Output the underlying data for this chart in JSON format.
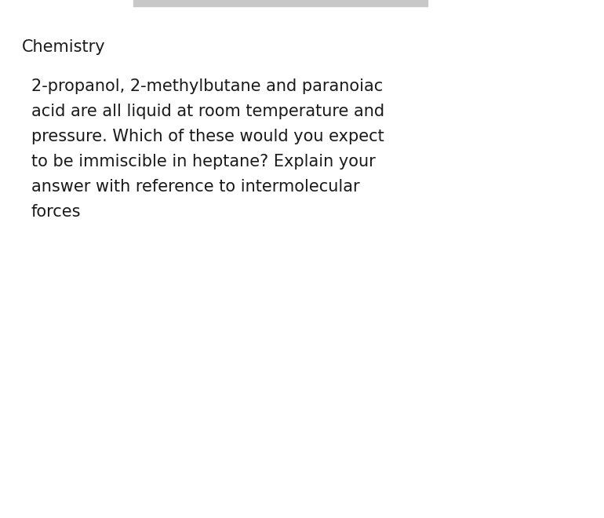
{
  "background_color": "#ffffff",
  "subject_text": "Chemistry",
  "subject_fontsize": 15,
  "subject_color": "#1a1a1a",
  "body_text": "2-propanol, 2-methylbutane and paranoiac\nacid are all liquid at room temperature and\npressure. Which of these would you expect\nto be immiscible in heptane? Explain your\nanswer with reference to intermolecular\nforces",
  "body_fontsize": 15,
  "body_color": "#1a1a1a",
  "top_bar_color": "#c8c8c8",
  "fig_width": 7.7,
  "fig_height": 6.6,
  "dpi": 100
}
